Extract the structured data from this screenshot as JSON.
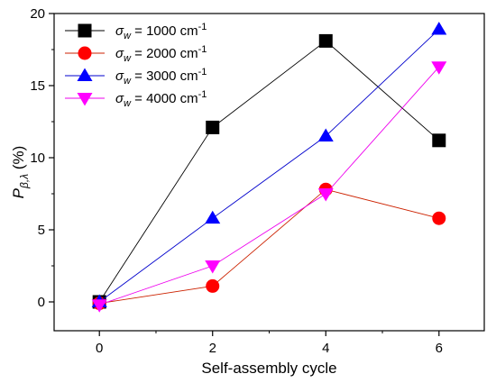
{
  "chart_data": {
    "type": "line",
    "title": "",
    "xlabel": "Self-assembly cycle",
    "ylabel": {
      "base": "P",
      "subscript": "β,λ",
      "suffix": " (%)"
    },
    "x": [
      0,
      2,
      4,
      6
    ],
    "xlim": [
      -0.8,
      6.8
    ],
    "ylim": [
      -2,
      20
    ],
    "xticks": [
      0,
      2,
      4,
      6
    ],
    "yticks": [
      0,
      5,
      10,
      15,
      20
    ],
    "grid": false,
    "legend_position": "top-left",
    "series": [
      {
        "name": "σw = 1000 cm-1",
        "label": {
          "sym": "σ",
          "sub": "w",
          "text": " = 1000 cm",
          "sup": "-1"
        },
        "marker": "square",
        "color": "#000000",
        "line_color": "#000000",
        "values": [
          0,
          12.1,
          18.1,
          11.2
        ]
      },
      {
        "name": "σw = 2000 cm-1",
        "label": {
          "sym": "σ",
          "sub": "w",
          "text": " = 2000 cm",
          "sup": "-1"
        },
        "marker": "circle",
        "color": "#ff0000",
        "line_color": "#cc2200",
        "values": [
          -0.1,
          1.1,
          7.8,
          5.8
        ]
      },
      {
        "name": "σw = 3000 cm-1",
        "label": {
          "sym": "σ",
          "sub": "w",
          "text": " = 3000 cm",
          "sup": "-1"
        },
        "marker": "triangle-up",
        "color": "#0000ff",
        "line_color": "#0000cc",
        "values": [
          0,
          5.8,
          11.5,
          18.9
        ]
      },
      {
        "name": "σw = 4000 cm-1",
        "label": {
          "sym": "σ",
          "sub": "w",
          "text": " = 4000 cm",
          "sup": "-1"
        },
        "marker": "triangle-down",
        "color": "#ff00ff",
        "line_color": "#ee00ee",
        "values": [
          -0.2,
          2.5,
          7.5,
          16.3
        ]
      }
    ]
  }
}
